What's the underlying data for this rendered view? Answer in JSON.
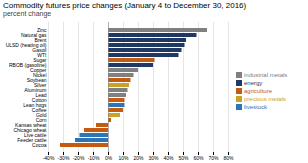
{
  "chart_data": {
    "type": "bar",
    "orientation": "horizontal",
    "title": "Commodity futures price changes (January 4 to December 30, 2016)",
    "subtitle": "percent change",
    "categories": [
      "Zinc",
      "Natural gas",
      "Brent",
      "ULSD (heating oil)",
      "Gasoil",
      "WTI",
      "Sugar",
      "RBOB (gasoline)",
      "Copper",
      "Nickel",
      "Soybean",
      "Silver",
      "Aluminum",
      "Lead",
      "Cotton",
      "Lean hogs",
      "Coffee",
      "Gold",
      "Corn",
      "Kansas wheat",
      "Chicago wheat",
      "Live cattle",
      "Feeder cattle",
      "Cocoa"
    ],
    "values": [
      66,
      59,
      52,
      51,
      49,
      47,
      31,
      30,
      20,
      17,
      15,
      14,
      13,
      12,
      11,
      11,
      10,
      8,
      2,
      -8,
      -16,
      -19,
      -22,
      -32
    ],
    "colors": [
      "#808080",
      "#1f3864",
      "#1f3864",
      "#1f3864",
      "#1f3864",
      "#1f3864",
      "#c55a11",
      "#1f3864",
      "#808080",
      "#808080",
      "#c55a11",
      "#c9a227",
      "#808080",
      "#808080",
      "#c55a11",
      "#2e75b6",
      "#c55a11",
      "#c9a227",
      "#c55a11",
      "#c55a11",
      "#c55a11",
      "#2e75b6",
      "#2e75b6",
      "#c55a11"
    ],
    "xlim": [
      -40,
      80
    ],
    "xticks": [
      {
        "value": -40,
        "label": "-40%"
      },
      {
        "value": -30,
        "label": "-30%"
      },
      {
        "value": -20,
        "label": "-20%"
      },
      {
        "value": -10,
        "label": "-10%"
      },
      {
        "value": 0,
        "label": "0%"
      },
      {
        "value": 10,
        "label": "10%"
      },
      {
        "value": 20,
        "label": "20%"
      },
      {
        "value": 30,
        "label": "30%"
      },
      {
        "value": 40,
        "label": "40%"
      },
      {
        "value": 50,
        "label": "50%"
      },
      {
        "value": 60,
        "label": "60%"
      },
      {
        "value": 70,
        "label": "70%"
      },
      {
        "value": 80,
        "label": "80%"
      }
    ],
    "grid": true,
    "legend_items": [
      {
        "label": "industrial metals",
        "color": "#808080"
      },
      {
        "label": "energy",
        "color": "#1f3864"
      },
      {
        "label": "agriculture",
        "color": "#c55a11"
      },
      {
        "label": "precious metals",
        "color": "#c9a227"
      },
      {
        "label": "livestock",
        "color": "#2e75b6"
      }
    ]
  }
}
